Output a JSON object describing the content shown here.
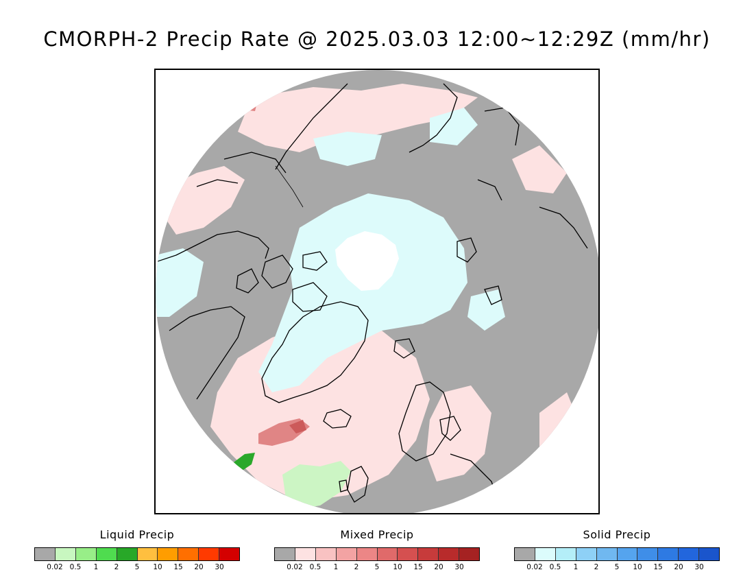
{
  "title": "CMORPH-2 Precip Rate @ 2025.03.03 12:00~12:29Z (mm/hr)",
  "colors": {
    "no_precip": "#a8a8a8",
    "liquid_light": "#ccf5c4",
    "liquid_green": "#2aa82a",
    "mixed_light": "#fde2e2",
    "mixed_mid": "#e08585",
    "solid_light": "#ddfbfb",
    "solid_white": "#ffffff",
    "coastline": "#000000"
  },
  "legends": [
    {
      "title": "Liquid Precip",
      "colors": [
        "#a8a8a8",
        "#c8f7c0",
        "#98ee88",
        "#4fdc4f",
        "#28a828",
        "#ffbf3f",
        "#ff9d00",
        "#ff6f00",
        "#ff3a00",
        "#d40000"
      ],
      "ticks": [
        "0.02",
        "0.5",
        "1",
        "2",
        "5",
        "10",
        "15",
        "20",
        "30"
      ]
    },
    {
      "title": "Mixed Precip",
      "colors": [
        "#a8a8a8",
        "#fde2e2",
        "#f9c2c2",
        "#f3a3a3",
        "#ec8686",
        "#e06a6a",
        "#d55050",
        "#c73b3b",
        "#b82b2b",
        "#a52222"
      ],
      "ticks": [
        "0.02",
        "0.5",
        "1",
        "2",
        "5",
        "10",
        "15",
        "20",
        "30"
      ]
    },
    {
      "title": "Solid Precip",
      "colors": [
        "#a8a8a8",
        "#dcfcfc",
        "#b4eef8",
        "#8ed0f6",
        "#70b8f0",
        "#55a4ee",
        "#3f8ee8",
        "#2e7ae3",
        "#2266dd",
        "#1a55cc"
      ],
      "ticks": [
        "0.02",
        "0.5",
        "1",
        "2",
        "5",
        "10",
        "15",
        "20",
        "30"
      ]
    }
  ]
}
